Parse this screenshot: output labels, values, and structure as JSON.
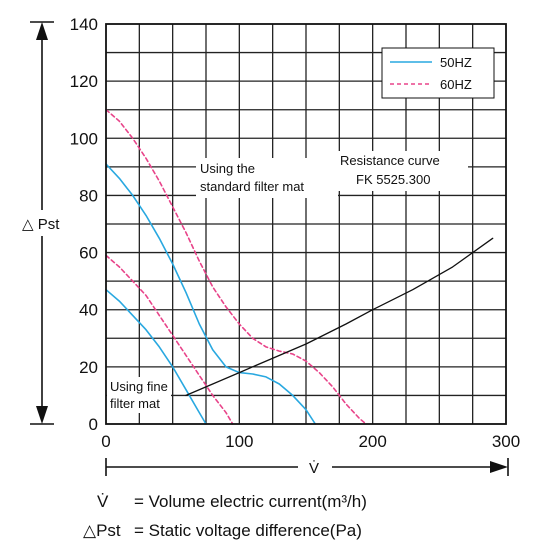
{
  "chart_data": {
    "type": "line",
    "title": "",
    "xlabel": "V̇",
    "ylabel": "△ Pst",
    "xlim": [
      0,
      300
    ],
    "ylim": [
      0,
      140
    ],
    "x_ticks": [
      0,
      100,
      200,
      300
    ],
    "y_ticks": [
      0,
      20,
      40,
      60,
      80,
      100,
      120,
      140
    ],
    "grid": true,
    "legend": {
      "position": "top-right",
      "entries": [
        {
          "label": "50HZ",
          "color": "#29a8e0",
          "style": "solid"
        },
        {
          "label": "60HZ",
          "color": "#e8448a",
          "style": "dashed"
        }
      ]
    },
    "series": [
      {
        "group": "50HZ",
        "color": "#29a8e0",
        "style": "solid",
        "x": [
          0,
          10,
          20,
          30,
          40,
          50,
          60,
          70,
          75
        ],
        "y": [
          47,
          43,
          38,
          33,
          27,
          20,
          12,
          4,
          0
        ]
      },
      {
        "group": "50HZ",
        "color": "#29a8e0",
        "style": "solid",
        "x": [
          0,
          10,
          20,
          30,
          40,
          50,
          60,
          70,
          80,
          90,
          100,
          110,
          120,
          130,
          140,
          150,
          157
        ],
        "y": [
          91,
          86,
          80,
          73,
          65,
          56,
          46,
          35,
          26,
          20,
          18,
          17.5,
          16.5,
          14,
          10,
          5,
          0
        ]
      },
      {
        "group": "60HZ",
        "color": "#e8448a",
        "style": "dashed",
        "x": [
          0,
          10,
          20,
          30,
          40,
          50,
          60,
          70,
          80,
          90,
          95
        ],
        "y": [
          59,
          55,
          50,
          45,
          38,
          31,
          24,
          17,
          10,
          4,
          0
        ]
      },
      {
        "group": "60HZ",
        "color": "#e8448a",
        "style": "dashed",
        "x": [
          0,
          10,
          20,
          30,
          40,
          50,
          60,
          70,
          80,
          90,
          100,
          110,
          120,
          130,
          140,
          150,
          160,
          170,
          180,
          190,
          195
        ],
        "y": [
          110,
          106,
          100,
          93,
          85,
          76,
          67,
          57,
          48,
          41,
          35,
          30,
          27,
          25.5,
          24.5,
          22,
          18,
          13,
          7,
          2,
          0
        ]
      },
      {
        "group": "resistance",
        "color": "#111111",
        "style": "solid",
        "x": [
          60,
          80,
          100,
          120,
          150,
          180,
          200,
          230,
          260,
          290
        ],
        "y": [
          10,
          14,
          18,
          22,
          28,
          35,
          40,
          47,
          55,
          65
        ]
      }
    ],
    "annotations": {
      "standard_line1": "Using the",
      "standard_line2": "standard filter mat",
      "resist_line1": "Resistance curve",
      "resist_line2": "FK 5525.300",
      "fine_line1": "Using fine",
      "fine_line2": "filter mat"
    },
    "footnote": {
      "line1_symbol": "V̇",
      "line1_text": "= Volume electric current(m³/h)",
      "line2_symbol": "△Pst",
      "line2_text": "= Static voltage difference(Pa)"
    }
  }
}
